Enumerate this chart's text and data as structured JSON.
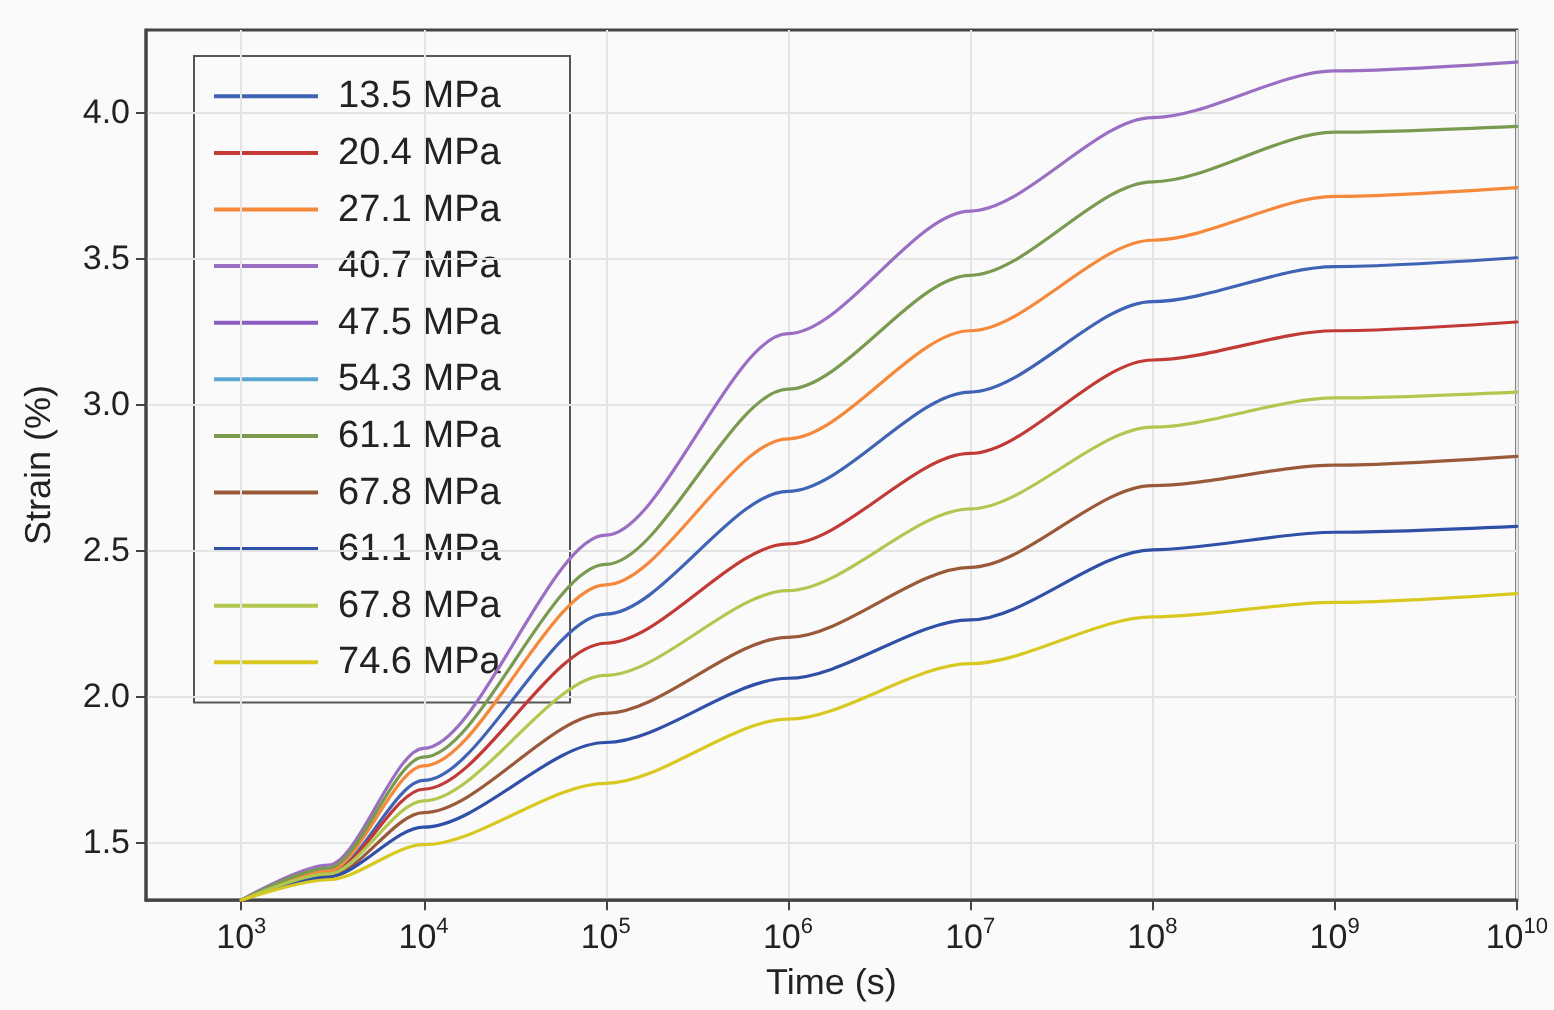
{
  "chart_data": {
    "type": "line",
    "xlabel": "Time (s)",
    "ylabel": "Strain (%)",
    "x": [
      1000,
      3000,
      10000,
      100000,
      1000000,
      10000000,
      100000000,
      1000000000,
      10000000000
    ],
    "series": [
      {
        "name": "13.5 MPa",
        "color": "#3f63b5",
        "values": [
          1.3,
          1.39,
          1.71,
          2.28,
          2.7,
          3.04,
          3.35,
          3.47,
          3.5
        ]
      },
      {
        "name": "20.4 MPa",
        "color": "#c23a35",
        "values": [
          1.3,
          1.39,
          1.68,
          2.18,
          2.52,
          2.83,
          3.15,
          3.25,
          3.28
        ]
      },
      {
        "name": "27.1 MPa",
        "color": "#f5883a",
        "values": [
          1.3,
          1.4,
          1.76,
          2.38,
          2.88,
          3.25,
          3.56,
          3.71,
          3.74
        ]
      },
      {
        "name": "40.7 MPa",
        "color": "#9a6ec2",
        "values": [
          1.3,
          1.42,
          1.82,
          2.55,
          3.24,
          3.66,
          3.98,
          4.14,
          4.17
        ]
      },
      {
        "name": "47.5 MPa",
        "color": "#8a5cc0",
        "values": [
          null,
          null,
          null,
          null,
          null,
          null,
          null,
          null,
          null
        ]
      },
      {
        "name": "54.3 MPa",
        "color": "#5aa7d6",
        "values": [
          null,
          null,
          null,
          null,
          null,
          null,
          null,
          null,
          null
        ]
      },
      {
        "name": "61.1 MPa",
        "color": "#7a9a50",
        "values": [
          1.3,
          1.41,
          1.79,
          2.45,
          3.05,
          3.44,
          3.76,
          3.93,
          3.95
        ]
      },
      {
        "name": "67.8 MPa",
        "color": "#9a5a3a",
        "values": [
          1.3,
          1.38,
          1.6,
          1.94,
          2.2,
          2.44,
          2.72,
          2.79,
          2.82
        ]
      },
      {
        "name": "61.1 MPa",
        "color": "#3050a8",
        "values": [
          1.3,
          1.38,
          1.55,
          1.84,
          2.06,
          2.26,
          2.5,
          2.56,
          2.58
        ]
      },
      {
        "name": "67.8 MPa",
        "color": "#b0c850",
        "values": [
          1.3,
          1.39,
          1.64,
          2.07,
          2.36,
          2.64,
          2.92,
          3.02,
          3.04
        ]
      },
      {
        "name": "74.6 MPa",
        "color": "#d8c820",
        "values": [
          1.3,
          1.37,
          1.49,
          1.7,
          1.92,
          2.11,
          2.27,
          2.32,
          2.35
        ]
      }
    ],
    "log": "x",
    "xlim": [
      300,
      10000000000
    ],
    "xticks": [
      {
        "value": 1000,
        "label": "10$^{3}$"
      },
      {
        "value": 10000,
        "label": "10$^{4}$"
      },
      {
        "value": 100000,
        "label": "10$^{5}$"
      },
      {
        "value": 1000000,
        "label": "10$^{6}$"
      },
      {
        "value": 10000000,
        "label": "10$^{7}$"
      },
      {
        "value": 100000000,
        "label": "10$^{8}$"
      },
      {
        "value": 1000000000,
        "label": "10$^{9}$"
      },
      {
        "value": 10000000000,
        "label": "10$^{10}$"
      }
    ],
    "ylim": [
      1.3,
      4.28
    ],
    "yticks": [
      {
        "value": 1.5,
        "label": "1.5"
      },
      {
        "value": 2,
        "label": "2.0"
      },
      {
        "value": 2.5,
        "label": "2.5"
      },
      {
        "value": 3,
        "label": "3.0"
      },
      {
        "value": 3.5,
        "label": "3.5"
      },
      {
        "value": 4,
        "label": "4.0"
      }
    ],
    "grid": true,
    "legend": "top left",
    "marker": "none",
    "line_style": "solid"
  }
}
